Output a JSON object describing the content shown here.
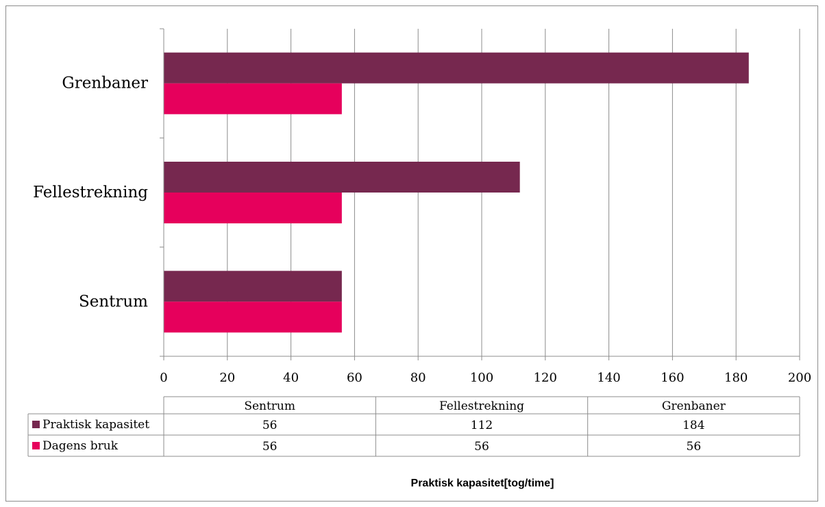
{
  "chart_data": {
    "type": "bar",
    "orientation": "horizontal",
    "categories": [
      "Sentrum",
      "Fellestrekning",
      "Grenbaner"
    ],
    "series": [
      {
        "name": "Praktisk kapasitet",
        "values": [
          56,
          112,
          184
        ],
        "color": "#76284f"
      },
      {
        "name": "Dagens bruk",
        "values": [
          56,
          56,
          56
        ],
        "color": "#e6005c"
      }
    ],
    "xlim": [
      0,
      200
    ],
    "xticks": [
      0,
      20,
      40,
      60,
      80,
      100,
      120,
      140,
      160,
      180,
      200
    ],
    "grid": true,
    "xlabel": "Praktisk kapasitet[tog/time]",
    "data_table": true
  }
}
